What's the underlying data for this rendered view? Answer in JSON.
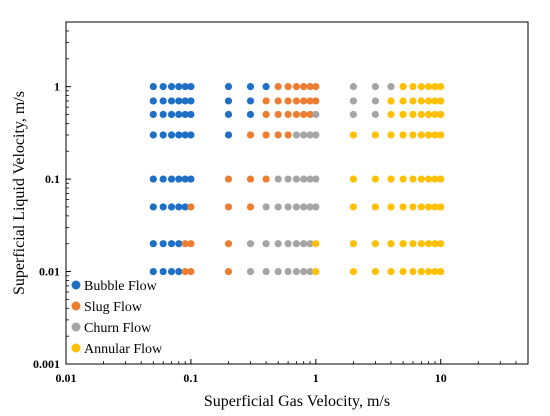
{
  "chart_data": {
    "type": "scatter",
    "xlabel": "Superficial Gas Velocity, m/s",
    "ylabel": "Superficial Liquid Velocity, m/s",
    "xscale": "log",
    "yscale": "log",
    "xlim": [
      0.01,
      50
    ],
    "ylim": [
      0.001,
      5
    ],
    "x_ticks": [
      0.01,
      0.1,
      1,
      10
    ],
    "x_tick_labels": [
      "0.01",
      "0.1",
      "1",
      "10"
    ],
    "y_ticks": [
      0.001,
      0.01,
      0.1,
      1
    ],
    "y_tick_labels": [
      "0.001",
      "0.01",
      "0.1",
      "1"
    ],
    "grid": false,
    "legend_position": "bottom-left",
    "series": [
      {
        "name": "Bubble Flow",
        "color": "#1f6fc5",
        "points": [
          [
            0.05,
            1
          ],
          [
            0.06,
            1
          ],
          [
            0.07,
            1
          ],
          [
            0.08,
            1
          ],
          [
            0.09,
            1
          ],
          [
            0.1,
            1
          ],
          [
            0.2,
            1
          ],
          [
            0.3,
            1
          ],
          [
            0.4,
            1
          ],
          [
            0.05,
            0.7
          ],
          [
            0.06,
            0.7
          ],
          [
            0.07,
            0.7
          ],
          [
            0.08,
            0.7
          ],
          [
            0.09,
            0.7
          ],
          [
            0.1,
            0.7
          ],
          [
            0.2,
            0.7
          ],
          [
            0.3,
            0.7
          ],
          [
            0.05,
            0.5
          ],
          [
            0.06,
            0.5
          ],
          [
            0.07,
            0.5
          ],
          [
            0.08,
            0.5
          ],
          [
            0.09,
            0.5
          ],
          [
            0.1,
            0.5
          ],
          [
            0.2,
            0.5
          ],
          [
            0.3,
            0.5
          ],
          [
            0.05,
            0.3
          ],
          [
            0.06,
            0.3
          ],
          [
            0.07,
            0.3
          ],
          [
            0.08,
            0.3
          ],
          [
            0.09,
            0.3
          ],
          [
            0.1,
            0.3
          ],
          [
            0.2,
            0.3
          ],
          [
            0.05,
            0.1
          ],
          [
            0.06,
            0.1
          ],
          [
            0.07,
            0.1
          ],
          [
            0.08,
            0.1
          ],
          [
            0.09,
            0.1
          ],
          [
            0.1,
            0.1
          ],
          [
            0.05,
            0.05
          ],
          [
            0.06,
            0.05
          ],
          [
            0.07,
            0.05
          ],
          [
            0.08,
            0.05
          ],
          [
            0.09,
            0.05
          ],
          [
            0.05,
            0.02
          ],
          [
            0.06,
            0.02
          ],
          [
            0.07,
            0.02
          ],
          [
            0.08,
            0.02
          ],
          [
            0.05,
            0.01
          ],
          [
            0.06,
            0.01
          ],
          [
            0.07,
            0.01
          ],
          [
            0.08,
            0.01
          ]
        ]
      },
      {
        "name": "Slug Flow",
        "color": "#ed7d31",
        "points": [
          [
            0.5,
            1
          ],
          [
            0.6,
            1
          ],
          [
            0.7,
            1
          ],
          [
            0.8,
            1
          ],
          [
            0.9,
            1
          ],
          [
            1,
            1
          ],
          [
            0.4,
            0.7
          ],
          [
            0.5,
            0.7
          ],
          [
            0.6,
            0.7
          ],
          [
            0.7,
            0.7
          ],
          [
            0.8,
            0.7
          ],
          [
            0.9,
            0.7
          ],
          [
            1,
            0.7
          ],
          [
            0.4,
            0.5
          ],
          [
            0.5,
            0.5
          ],
          [
            0.6,
            0.5
          ],
          [
            0.7,
            0.5
          ],
          [
            0.8,
            0.5
          ],
          [
            0.9,
            0.5
          ],
          [
            0.3,
            0.3
          ],
          [
            0.4,
            0.3
          ],
          [
            0.5,
            0.3
          ],
          [
            0.6,
            0.3
          ],
          [
            0.2,
            0.1
          ],
          [
            0.3,
            0.1
          ],
          [
            0.4,
            0.1
          ],
          [
            0.1,
            0.05
          ],
          [
            0.2,
            0.05
          ],
          [
            0.3,
            0.05
          ],
          [
            0.09,
            0.02
          ],
          [
            0.1,
            0.02
          ],
          [
            0.2,
            0.02
          ],
          [
            0.09,
            0.01
          ],
          [
            0.1,
            0.01
          ],
          [
            0.2,
            0.01
          ]
        ]
      },
      {
        "name": "Churn Flow",
        "color": "#a5a5a5",
        "points": [
          [
            2,
            1
          ],
          [
            3,
            1
          ],
          [
            4,
            1
          ],
          [
            2,
            0.7
          ],
          [
            3,
            0.7
          ],
          [
            2,
            0.5
          ],
          [
            3,
            0.5
          ],
          [
            1,
            0.5
          ],
          [
            0.7,
            0.3
          ],
          [
            0.8,
            0.3
          ],
          [
            0.9,
            0.3
          ],
          [
            1,
            0.3
          ],
          [
            0.5,
            0.1
          ],
          [
            0.6,
            0.1
          ],
          [
            0.7,
            0.1
          ],
          [
            0.8,
            0.1
          ],
          [
            0.9,
            0.1
          ],
          [
            1,
            0.1
          ],
          [
            0.4,
            0.05
          ],
          [
            0.5,
            0.05
          ],
          [
            0.6,
            0.05
          ],
          [
            0.7,
            0.05
          ],
          [
            0.8,
            0.05
          ],
          [
            0.9,
            0.05
          ],
          [
            1,
            0.05
          ],
          [
            0.3,
            0.02
          ],
          [
            0.4,
            0.02
          ],
          [
            0.5,
            0.02
          ],
          [
            0.6,
            0.02
          ],
          [
            0.7,
            0.02
          ],
          [
            0.8,
            0.02
          ],
          [
            0.9,
            0.02
          ],
          [
            0.3,
            0.01
          ],
          [
            0.4,
            0.01
          ],
          [
            0.5,
            0.01
          ],
          [
            0.6,
            0.01
          ],
          [
            0.7,
            0.01
          ],
          [
            0.8,
            0.01
          ],
          [
            0.9,
            0.01
          ]
        ]
      },
      {
        "name": "Annular Flow",
        "color": "#ffc000",
        "points": [
          [
            5,
            1
          ],
          [
            6,
            1
          ],
          [
            7,
            1
          ],
          [
            8,
            1
          ],
          [
            9,
            1
          ],
          [
            10,
            1
          ],
          [
            4,
            0.7
          ],
          [
            5,
            0.7
          ],
          [
            6,
            0.7
          ],
          [
            7,
            0.7
          ],
          [
            8,
            0.7
          ],
          [
            9,
            0.7
          ],
          [
            10,
            0.7
          ],
          [
            4,
            0.5
          ],
          [
            5,
            0.5
          ],
          [
            6,
            0.5
          ],
          [
            7,
            0.5
          ],
          [
            8,
            0.5
          ],
          [
            9,
            0.5
          ],
          [
            10,
            0.5
          ],
          [
            2,
            0.3
          ],
          [
            3,
            0.3
          ],
          [
            4,
            0.3
          ],
          [
            5,
            0.3
          ],
          [
            6,
            0.3
          ],
          [
            7,
            0.3
          ],
          [
            8,
            0.3
          ],
          [
            9,
            0.3
          ],
          [
            10,
            0.3
          ],
          [
            2,
            0.1
          ],
          [
            3,
            0.1
          ],
          [
            4,
            0.1
          ],
          [
            5,
            0.1
          ],
          [
            6,
            0.1
          ],
          [
            7,
            0.1
          ],
          [
            8,
            0.1
          ],
          [
            9,
            0.1
          ],
          [
            10,
            0.1
          ],
          [
            2,
            0.05
          ],
          [
            3,
            0.05
          ],
          [
            4,
            0.05
          ],
          [
            5,
            0.05
          ],
          [
            6,
            0.05
          ],
          [
            7,
            0.05
          ],
          [
            8,
            0.05
          ],
          [
            9,
            0.05
          ],
          [
            10,
            0.05
          ],
          [
            1,
            0.02
          ],
          [
            2,
            0.02
          ],
          [
            3,
            0.02
          ],
          [
            4,
            0.02
          ],
          [
            5,
            0.02
          ],
          [
            6,
            0.02
          ],
          [
            7,
            0.02
          ],
          [
            8,
            0.02
          ],
          [
            9,
            0.02
          ],
          [
            10,
            0.02
          ],
          [
            1,
            0.01
          ],
          [
            2,
            0.01
          ],
          [
            3,
            0.01
          ],
          [
            4,
            0.01
          ],
          [
            5,
            0.01
          ],
          [
            6,
            0.01
          ],
          [
            7,
            0.01
          ],
          [
            8,
            0.01
          ],
          [
            9,
            0.01
          ],
          [
            10,
            0.01
          ]
        ]
      }
    ]
  }
}
